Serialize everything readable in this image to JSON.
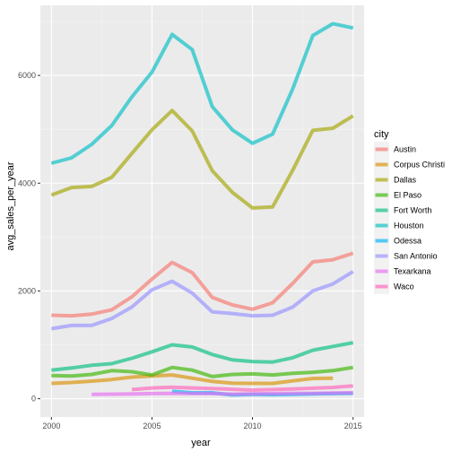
{
  "chart_data": {
    "type": "line",
    "xlabel": "year",
    "ylabel": "avg_sales_per_year",
    "xlim": [
      1999.45,
      2015.55
    ],
    "ylim": [
      -340,
      7300
    ],
    "x_ticks": [
      2000,
      2005,
      2010,
      2015
    ],
    "y_ticks": [
      0,
      2000,
      4000,
      6000
    ],
    "grid": true,
    "legend": {
      "title": "city",
      "placement": "right"
    },
    "series": [
      {
        "name": "Austin",
        "color": "#F8766D",
        "x": [
          2000,
          2001,
          2002,
          2003,
          2004,
          2005,
          2006,
          2007,
          2008,
          2009,
          2010,
          2011,
          2012,
          2013,
          2014,
          2015
        ],
        "y": [
          1550,
          1540,
          1570,
          1650,
          1890,
          2220,
          2530,
          2340,
          1880,
          1740,
          1660,
          1780,
          2140,
          2540,
          2580,
          2700
        ]
      },
      {
        "name": "Corpus Christi",
        "color": "#D89000",
        "x": [
          2000,
          2001,
          2002,
          2003,
          2004,
          2005,
          2006,
          2007,
          2008,
          2009,
          2010,
          2011,
          2012,
          2013,
          2014
        ],
        "y": [
          285,
          300,
          325,
          355,
          400,
          420,
          440,
          380,
          320,
          290,
          285,
          285,
          330,
          375,
          380
        ]
      },
      {
        "name": "Dallas",
        "color": "#A3A500",
        "x": [
          2000,
          2001,
          2002,
          2003,
          2004,
          2005,
          2006,
          2007,
          2008,
          2009,
          2010,
          2011,
          2012,
          2013,
          2014,
          2015
        ],
        "y": [
          3780,
          3920,
          3940,
          4110,
          4550,
          4990,
          5350,
          4970,
          4230,
          3830,
          3540,
          3560,
          4240,
          4980,
          5020,
          5250
        ]
      },
      {
        "name": "El Paso",
        "color": "#39B600",
        "x": [
          2000,
          2001,
          2002,
          2003,
          2004,
          2005,
          2006,
          2007,
          2008,
          2009,
          2010,
          2011,
          2012,
          2013,
          2014,
          2015
        ],
        "y": [
          430,
          420,
          450,
          520,
          500,
          440,
          580,
          530,
          410,
          450,
          460,
          440,
          470,
          490,
          520,
          580
        ]
      },
      {
        "name": "Fort Worth",
        "color": "#00BF7D",
        "x": [
          2000,
          2001,
          2002,
          2003,
          2004,
          2005,
          2006,
          2007,
          2008,
          2009,
          2010,
          2011,
          2012,
          2013,
          2014,
          2015
        ],
        "y": [
          530,
          570,
          620,
          650,
          750,
          870,
          1000,
          960,
          820,
          720,
          690,
          680,
          760,
          900,
          970,
          1040
        ]
      },
      {
        "name": "Houston",
        "color": "#00BFC4",
        "x": [
          2000,
          2001,
          2002,
          2003,
          2004,
          2005,
          2006,
          2007,
          2008,
          2009,
          2010,
          2011,
          2012,
          2013,
          2014,
          2015
        ],
        "y": [
          4370,
          4470,
          4720,
          5070,
          5600,
          6060,
          6760,
          6480,
          5420,
          4990,
          4740,
          4910,
          5750,
          6740,
          6960,
          6880
        ]
      },
      {
        "name": "Odessa",
        "color": "#00B0F6",
        "x": [
          2006,
          2007,
          2008,
          2009,
          2010,
          2011,
          2012,
          2013,
          2014,
          2015
        ],
        "y": [
          140,
          110,
          110,
          70,
          80,
          75,
          80,
          90,
          95,
          100
        ]
      },
      {
        "name": "San Antonio",
        "color": "#9590FF",
        "x": [
          2000,
          2001,
          2002,
          2003,
          2004,
          2005,
          2006,
          2007,
          2008,
          2009,
          2010,
          2011,
          2012,
          2013,
          2014,
          2015
        ],
        "y": [
          1300,
          1360,
          1360,
          1490,
          1700,
          2020,
          2180,
          1960,
          1610,
          1580,
          1540,
          1550,
          1700,
          2000,
          2130,
          2360
        ]
      },
      {
        "name": "Texarkana",
        "color": "#E76BF3",
        "x": [
          2002,
          2003,
          2004,
          2005,
          2006,
          2007,
          2008,
          2009,
          2010,
          2011,
          2012,
          2013,
          2014,
          2015
        ],
        "y": [
          80,
          85,
          90,
          95,
          100,
          95,
          95,
          85,
          90,
          95,
          100,
          100,
          105,
          110
        ]
      },
      {
        "name": "Waco",
        "color": "#FF62BC",
        "x": [
          2004,
          2005,
          2006,
          2007,
          2008,
          2009,
          2010,
          2011,
          2012,
          2013,
          2014,
          2015
        ],
        "y": [
          170,
          200,
          215,
          200,
          190,
          175,
          160,
          170,
          180,
          195,
          210,
          240
        ]
      }
    ]
  }
}
